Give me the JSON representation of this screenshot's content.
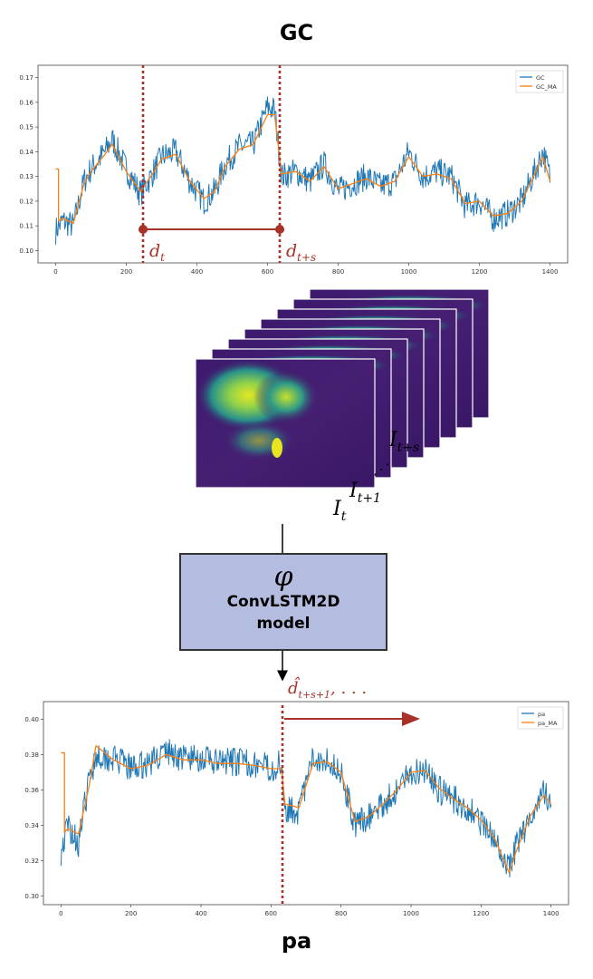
{
  "top_chart": {
    "title": "GC",
    "legend": [
      "GC",
      "GC_MA"
    ],
    "x_ticks": [
      "0",
      "200",
      "400",
      "600",
      "800",
      "1000",
      "1200",
      "1400"
    ],
    "y_ticks": [
      "0.10",
      "0.11",
      "0.12",
      "0.13",
      "0.14",
      "0.15",
      "0.16",
      "0.17"
    ],
    "annotation_start": "d",
    "annotation_start_sub": "t",
    "annotation_end": "d",
    "annotation_end_sub": "t+s"
  },
  "bottom_chart": {
    "title": "pa",
    "legend": [
      "pa",
      "pa_MA"
    ],
    "x_ticks": [
      "0",
      "200",
      "400",
      "600",
      "800",
      "1000",
      "1200",
      "1400"
    ],
    "y_ticks": [
      "0.30",
      "0.32",
      "0.34",
      "0.36",
      "0.38",
      "0.40"
    ],
    "prediction_label": "d̂",
    "prediction_sub": "t+s+1",
    "prediction_suffix": ", . . ."
  },
  "frames": {
    "label_first": "I",
    "label_first_sub": "t",
    "label_second": "I",
    "label_second_sub": "t+1",
    "label_last": "I",
    "label_last_sub": "t+s"
  },
  "model": {
    "symbol": "φ",
    "name_line1": "ConvLSTM2D",
    "name_line2": "model"
  },
  "chart_data": [
    {
      "type": "line",
      "title": "GC",
      "x_range": [
        0,
        1400
      ],
      "ylim": [
        0.095,
        0.175
      ],
      "legend_position": "top-right",
      "series": [
        {
          "name": "GC",
          "color": "#1f77b4",
          "x": [
            0,
            20,
            50,
            80,
            100,
            140,
            160,
            200,
            240,
            270,
            300,
            340,
            380,
            420,
            450,
            480,
            520,
            560,
            600,
            620,
            640,
            680,
            720,
            760,
            800,
            840,
            880,
            920,
            960,
            1000,
            1040,
            1080,
            1120,
            1160,
            1200,
            1240,
            1280,
            1320,
            1360,
            1380,
            1400
          ],
          "y": [
            0.108,
            0.112,
            0.11,
            0.128,
            0.133,
            0.14,
            0.145,
            0.133,
            0.123,
            0.13,
            0.138,
            0.14,
            0.128,
            0.12,
            0.124,
            0.135,
            0.142,
            0.143,
            0.158,
            0.157,
            0.13,
            0.132,
            0.128,
            0.135,
            0.124,
            0.127,
            0.13,
            0.126,
            0.128,
            0.14,
            0.13,
            0.132,
            0.13,
            0.118,
            0.12,
            0.113,
            0.115,
            0.12,
            0.133,
            0.14,
            0.13
          ]
        },
        {
          "name": "GC_MA",
          "color": "#ff7f0e",
          "x": [
            0,
            8,
            8,
            20,
            50,
            80,
            100,
            140,
            160,
            200,
            240,
            270,
            300,
            340,
            380,
            420,
            450,
            480,
            520,
            560,
            600,
            620,
            640,
            680,
            720,
            760,
            800,
            840,
            880,
            920,
            960,
            1000,
            1040,
            1080,
            1120,
            1160,
            1200,
            1240,
            1280,
            1320,
            1360,
            1380,
            1400
          ],
          "y": [
            0.133,
            0.133,
            0.112,
            0.113,
            0.111,
            0.127,
            0.132,
            0.139,
            0.143,
            0.132,
            0.124,
            0.13,
            0.137,
            0.139,
            0.128,
            0.121,
            0.124,
            0.134,
            0.141,
            0.143,
            0.155,
            0.155,
            0.131,
            0.132,
            0.128,
            0.134,
            0.125,
            0.127,
            0.129,
            0.126,
            0.128,
            0.138,
            0.13,
            0.131,
            0.129,
            0.119,
            0.12,
            0.114,
            0.115,
            0.12,
            0.132,
            0.138,
            0.128
          ]
        }
      ],
      "vlines": [
        240,
        633
      ]
    },
    {
      "type": "line",
      "title": "pa",
      "x_range": [
        0,
        1400
      ],
      "ylim": [
        0.295,
        0.41
      ],
      "legend_position": "top-right",
      "series": [
        {
          "name": "pa",
          "color": "#1f77b4",
          "x": [
            0,
            20,
            50,
            80,
            100,
            150,
            200,
            250,
            300,
            350,
            400,
            450,
            500,
            550,
            600,
            630,
            640,
            680,
            720,
            760,
            800,
            820,
            840,
            880,
            920,
            960,
            1000,
            1040,
            1080,
            1120,
            1160,
            1200,
            1240,
            1280,
            1300,
            1340,
            1380,
            1400
          ],
          "y": [
            0.325,
            0.34,
            0.33,
            0.365,
            0.38,
            0.378,
            0.372,
            0.375,
            0.382,
            0.378,
            0.378,
            0.375,
            0.376,
            0.375,
            0.372,
            0.375,
            0.35,
            0.348,
            0.378,
            0.378,
            0.37,
            0.355,
            0.34,
            0.345,
            0.352,
            0.36,
            0.37,
            0.372,
            0.36,
            0.355,
            0.35,
            0.342,
            0.33,
            0.315,
            0.328,
            0.345,
            0.36,
            0.35
          ]
        },
        {
          "name": "pa_MA",
          "color": "#ff7f0e",
          "x": [
            0,
            10,
            10,
            20,
            50,
            80,
            100,
            150,
            200,
            250,
            300,
            350,
            400,
            450,
            500,
            550,
            600,
            630,
            640,
            680,
            720,
            760,
            800,
            820,
            840,
            880,
            920,
            960,
            1000,
            1040,
            1080,
            1120,
            1160,
            1200,
            1240,
            1280,
            1300,
            1340,
            1380,
            1400
          ],
          "y": [
            0.381,
            0.381,
            0.336,
            0.338,
            0.335,
            0.362,
            0.385,
            0.377,
            0.372,
            0.374,
            0.38,
            0.377,
            0.377,
            0.375,
            0.375,
            0.374,
            0.372,
            0.372,
            0.352,
            0.35,
            0.375,
            0.376,
            0.37,
            0.356,
            0.342,
            0.345,
            0.352,
            0.36,
            0.37,
            0.371,
            0.361,
            0.355,
            0.35,
            0.343,
            0.332,
            0.313,
            0.325,
            0.345,
            0.357,
            0.352
          ]
        }
      ],
      "vlines": [
        640
      ]
    }
  ],
  "colors": {
    "accent_red": "#a8322a",
    "box_fill": "#b4bcdf",
    "series_blue": "#1f77b4",
    "series_orange": "#ff7f0e"
  }
}
